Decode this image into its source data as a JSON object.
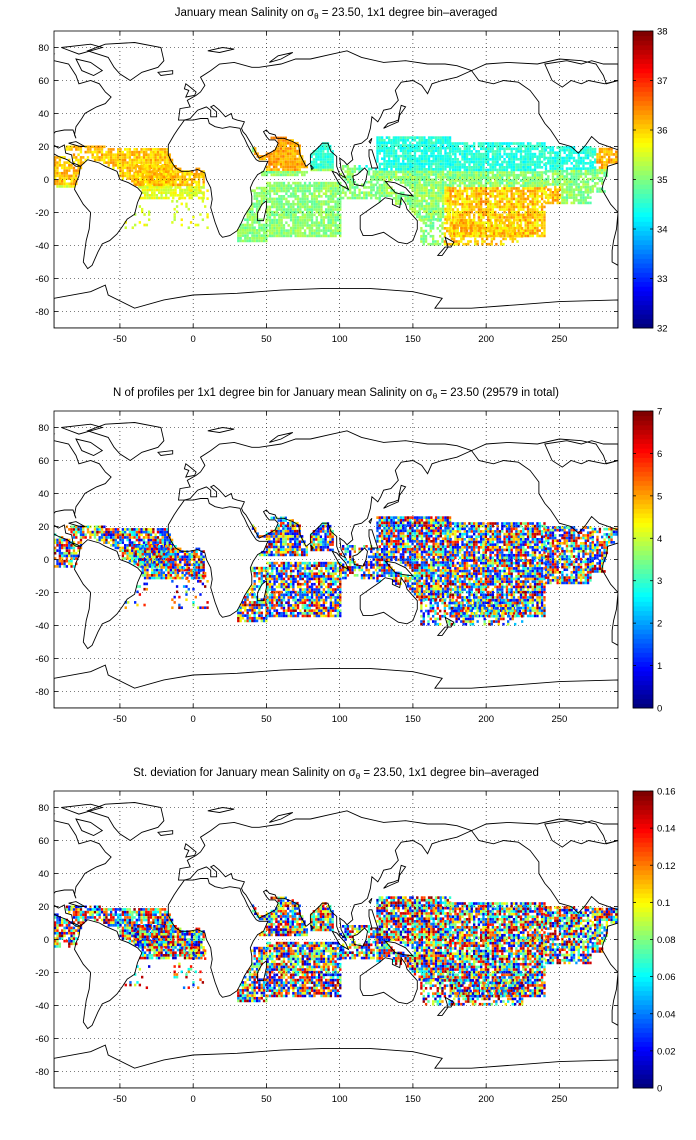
{
  "panels": [
    {
      "title_pre": "January mean Salinity on ",
      "title_post": " = 23.50, 1x1 degree bin–averaged",
      "colorbar": {
        "min": 32,
        "max": 38,
        "ticks": [
          "32",
          "33",
          "34",
          "35",
          "36",
          "37",
          "38"
        ]
      },
      "field": "salinity"
    },
    {
      "title_pre": "N of profiles per 1x1 degree bin for January mean Salinity on ",
      "title_post": " = 23.50 (29579 in total)",
      "colorbar": {
        "min": 0,
        "max": 7,
        "ticks": [
          "0",
          "1",
          "2",
          "3",
          "4",
          "5",
          "6",
          "7"
        ]
      },
      "field": "count"
    },
    {
      "title_pre": "St. deviation for January mean Salinity on ",
      "title_post": " = 23.50, 1x1 degree bin–averaged",
      "colorbar": {
        "min": 0,
        "max": 0.16,
        "ticks": [
          "0",
          "0.02",
          "0.04",
          "0.06",
          "0.08",
          "0.1",
          "0.12",
          "0.14",
          "0.16"
        ]
      },
      "field": "std"
    }
  ],
  "sigma_symbol": "σ",
  "sigma_sub": "θ",
  "x_ticks": [
    "-50",
    "0",
    "50",
    "100",
    "150",
    "200",
    "250"
  ],
  "y_ticks": [
    "80",
    "60",
    "40",
    "20",
    "0",
    "-20",
    "-40",
    "-60",
    "-80"
  ],
  "map_extent": {
    "lon": [
      -95,
      290
    ],
    "lat": [
      -90,
      90
    ]
  },
  "colormap": "jet"
}
